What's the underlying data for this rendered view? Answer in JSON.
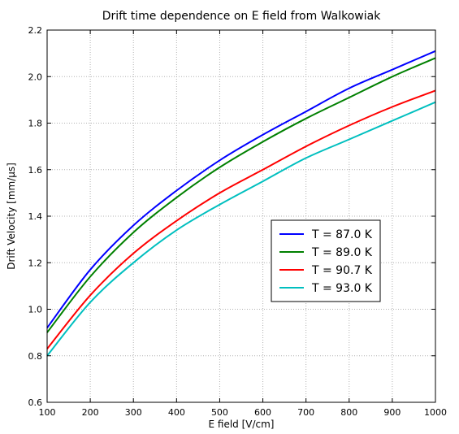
{
  "chart_data": {
    "type": "line",
    "title": "Drift time dependence on E field from Walkowiak",
    "xlabel": "E field [V/cm]",
    "ylabel": "Drift Velocity [mm/μs]",
    "xlim": [
      100,
      1000
    ],
    "ylim": [
      0.6,
      2.2
    ],
    "xticks": [
      100,
      200,
      300,
      400,
      500,
      600,
      700,
      800,
      900,
      1000
    ],
    "yticks": [
      0.6,
      0.8,
      1.0,
      1.2,
      1.4,
      1.6,
      1.8,
      2.0,
      2.2
    ],
    "ytick_labels": [
      "0.6",
      "0.8",
      "1.0",
      "1.2",
      "1.4",
      "1.6",
      "1.8",
      "2.0",
      "2.2"
    ],
    "grid": true,
    "legend_position": "center-right",
    "x": [
      100,
      200,
      300,
      400,
      500,
      600,
      700,
      800,
      900,
      1000
    ],
    "series": [
      {
        "name": "T = 87.0 K",
        "color": "#0000ff",
        "values": [
          0.92,
          1.17,
          1.36,
          1.51,
          1.64,
          1.75,
          1.85,
          1.95,
          2.03,
          2.11
        ]
      },
      {
        "name": "T = 89.0 K",
        "color": "#008000",
        "values": [
          0.9,
          1.14,
          1.33,
          1.48,
          1.61,
          1.72,
          1.82,
          1.91,
          2.0,
          2.08
        ]
      },
      {
        "name": "T = 90.7 K",
        "color": "#ff0000",
        "values": [
          0.83,
          1.06,
          1.24,
          1.38,
          1.5,
          1.6,
          1.7,
          1.79,
          1.87,
          1.94
        ]
      },
      {
        "name": "T = 93.0 K",
        "color": "#00bfbf",
        "values": [
          0.8,
          1.03,
          1.2,
          1.34,
          1.45,
          1.55,
          1.65,
          1.73,
          1.81,
          1.89
        ]
      }
    ]
  }
}
